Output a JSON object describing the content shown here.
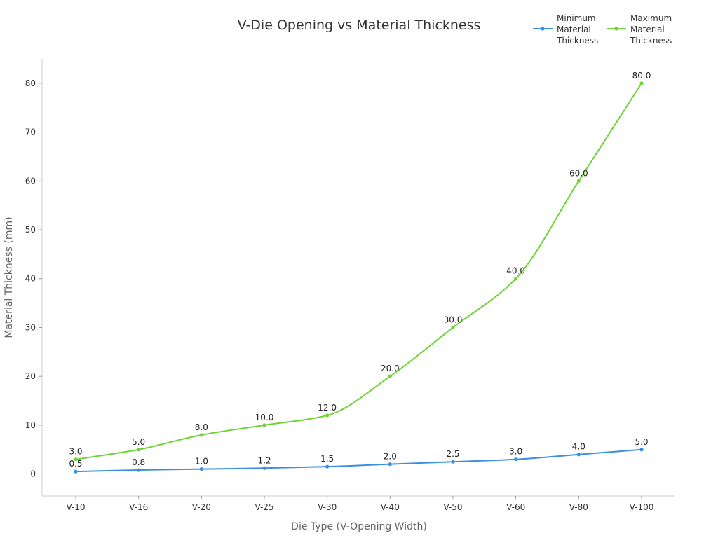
{
  "chart_data": {
    "type": "line",
    "title": "V-Die Opening vs Material Thickness",
    "xlabel": "Die Type (V-Opening Width)",
    "ylabel": "Material Thickness (mm)",
    "categories": [
      "V-10",
      "V-16",
      "V-20",
      "V-25",
      "V-30",
      "V-40",
      "V-50",
      "V-60",
      "V-80",
      "V-100"
    ],
    "ylim": [
      -4.5,
      85
    ],
    "yticks": [
      0,
      10,
      20,
      30,
      40,
      50,
      60,
      70,
      80
    ],
    "grid": false,
    "legend_position": "top-right",
    "series": [
      {
        "name": "Minimum Material Thickness",
        "legend_lines": [
          "Minimum",
          "Material",
          "Thickness"
        ],
        "color": "#3b8fe0",
        "values": [
          0.5,
          0.8,
          1.0,
          1.2,
          1.5,
          2.0,
          2.5,
          3.0,
          4.0,
          5.0
        ],
        "labels": [
          "0.5",
          "0.8",
          "1.0",
          "1.2",
          "1.5",
          "2.0",
          "2.5",
          "3.0",
          "4.0",
          "5.0"
        ]
      },
      {
        "name": "Maximum Material Thickness",
        "legend_lines": [
          "Maximum",
          "Material",
          "Thickness"
        ],
        "color": "#6cd433",
        "values": [
          3.0,
          5.0,
          8.0,
          10.0,
          12.0,
          20.0,
          30.0,
          40.0,
          60.0,
          80.0
        ],
        "labels": [
          "3.0",
          "5.0",
          "8.0",
          "10.0",
          "12.0",
          "20.0",
          "30.0",
          "40.0",
          "60.0",
          "80.0"
        ]
      }
    ]
  }
}
